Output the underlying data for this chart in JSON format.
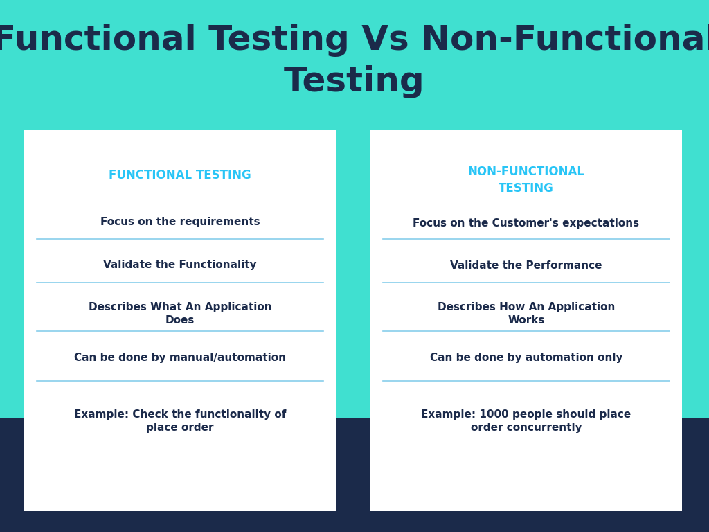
{
  "title": "Functional Testing Vs Non-Functional\nTesting",
  "bg_color": "#40E0D0",
  "dark_navy": "#1B2A4A",
  "card_bg": "#FFFFFF",
  "cyan_header": "#29C5F6",
  "divider_color": "#87CEEB",
  "title_fontsize": 36,
  "left_header": "FUNCTIONAL TESTING",
  "right_header": "NON-FUNCTIONAL\nTESTING",
  "left_items": [
    "Focus on the requirements",
    "Validate the Functionality",
    "Describes What An Application\nDoes",
    "Can be done by manual/automation",
    "Example: Check the functionality of\nplace order"
  ],
  "right_items": [
    "Focus on the Customer's expectations",
    "Validate the Performance",
    "Describes How An Application\nWorks",
    "Can be done by automation only",
    "Example: 1000 people should place\norder concurrently"
  ]
}
